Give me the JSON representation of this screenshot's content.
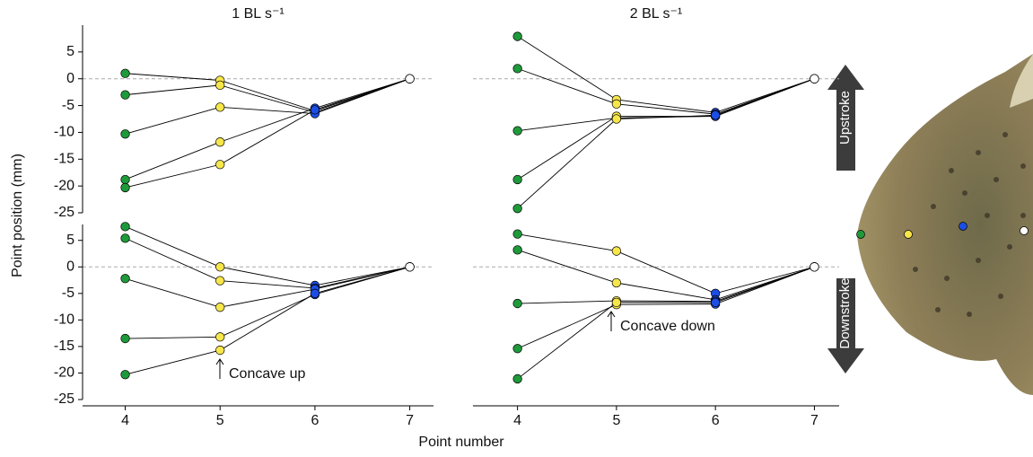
{
  "y_label": "Point position (mm)",
  "x_label": "Point number",
  "chart_data": [
    {
      "type": "line",
      "title": "1 BL s⁻¹",
      "x": [
        4,
        5,
        6,
        7
      ],
      "ylim": [
        -25,
        10
      ],
      "xlim": [
        3.55,
        7.25
      ],
      "yticks": [
        5,
        0,
        -5,
        -10,
        -15,
        -20,
        -25
      ],
      "zero_line": true,
      "point_colors": [
        "#1f9a3a",
        "#f7e64a",
        "#1c4ee6",
        "#ffffff"
      ],
      "series": [
        {
          "values": [
            1.0,
            -0.3,
            -6.0,
            0
          ]
        },
        {
          "values": [
            -3.0,
            -1.2,
            -6.3,
            0
          ]
        },
        {
          "values": [
            -10.3,
            -5.3,
            -6.5,
            0
          ]
        },
        {
          "values": [
            -18.8,
            -11.8,
            -5.5,
            0
          ]
        },
        {
          "values": [
            -20.3,
            -16.0,
            -5.8,
            0
          ]
        }
      ]
    },
    {
      "type": "line",
      "title": "2 BL s⁻¹",
      "x": [
        4,
        5,
        6,
        7
      ],
      "ylim": [
        -25,
        10
      ],
      "xlim": [
        3.55,
        7.25
      ],
      "zero_line": true,
      "stroke_label": "Upstroke",
      "point_colors": [
        "#1f9a3a",
        "#f7e64a",
        "#1c4ee6",
        "#ffffff"
      ],
      "series": [
        {
          "values": [
            7.9,
            -3.9,
            -6.3,
            0
          ]
        },
        {
          "values": [
            1.9,
            -4.7,
            -6.6,
            0
          ]
        },
        {
          "values": [
            -9.7,
            -7.3,
            -7.0,
            0
          ]
        },
        {
          "values": [
            -18.8,
            -7.0,
            -7.0,
            0
          ]
        },
        {
          "values": [
            -24.2,
            -7.5,
            -6.8,
            0
          ]
        }
      ]
    },
    {
      "type": "line",
      "x": [
        4,
        5,
        6,
        7
      ],
      "ylim": [
        -25,
        8
      ],
      "xlim": [
        3.55,
        7.25
      ],
      "yticks": [
        5,
        0,
        -5,
        -10,
        -15,
        -20,
        -25
      ],
      "xticks": [
        4,
        5,
        6,
        7
      ],
      "zero_line": true,
      "annotation": "Concave up",
      "point_colors": [
        "#1f9a3a",
        "#f7e64a",
        "#1c4ee6",
        "#ffffff"
      ],
      "series": [
        {
          "values": [
            7.6,
            0.0,
            -3.5,
            0
          ]
        },
        {
          "values": [
            5.4,
            -2.6,
            -4.0,
            0
          ]
        },
        {
          "values": [
            -2.2,
            -7.6,
            -4.2,
            0
          ]
        },
        {
          "values": [
            -13.5,
            -13.2,
            -5.2,
            0
          ]
        },
        {
          "values": [
            -20.3,
            -15.7,
            -5.0,
            0
          ]
        }
      ]
    },
    {
      "type": "line",
      "x": [
        4,
        5,
        6,
        7
      ],
      "ylim": [
        -25,
        8
      ],
      "xlim": [
        3.55,
        7.25
      ],
      "xticks": [
        4,
        5,
        6,
        7
      ],
      "zero_line": true,
      "stroke_label": "Downstroke",
      "annotation": "Concave down",
      "point_colors": [
        "#1f9a3a",
        "#f7e64a",
        "#1c4ee6",
        "#ffffff"
      ],
      "series": [
        {
          "values": [
            6.2,
            3.0,
            -5.0,
            0
          ]
        },
        {
          "values": [
            3.2,
            -3.0,
            -6.2,
            0
          ]
        },
        {
          "values": [
            -6.9,
            -6.4,
            -6.5,
            0
          ]
        },
        {
          "values": [
            -15.4,
            -7.1,
            -7.0,
            0
          ]
        },
        {
          "values": [
            -21.1,
            -6.7,
            -6.7,
            0
          ]
        }
      ]
    }
  ]
}
